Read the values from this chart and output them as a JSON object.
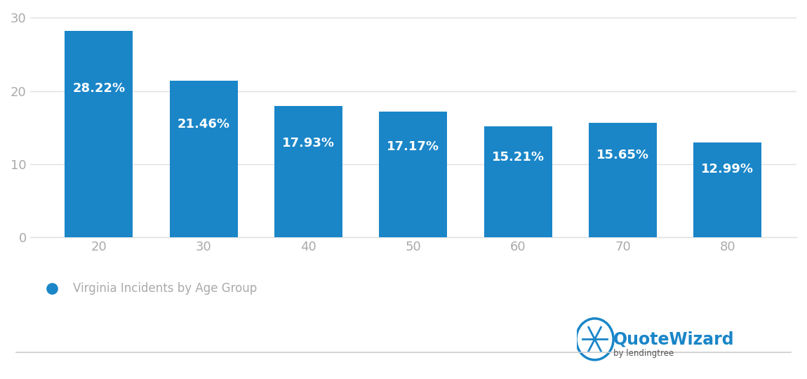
{
  "categories": [
    20,
    30,
    40,
    50,
    60,
    70,
    80
  ],
  "values": [
    28.22,
    21.46,
    17.93,
    17.17,
    15.21,
    15.65,
    12.99
  ],
  "labels": [
    "28.22%",
    "21.46%",
    "17.93%",
    "17.17%",
    "15.21%",
    "15.65%",
    "12.99%"
  ],
  "bar_color": "#1a86c8",
  "label_color": "#ffffff",
  "label_fontsize": 13,
  "label_fontweight": "bold",
  "yticks": [
    0,
    10,
    20,
    30
  ],
  "ylim": [
    0,
    31
  ],
  "tick_color": "#aaaaaa",
  "tick_fontsize": 13,
  "background_color": "#ffffff",
  "legend_label": "Virginia Incidents by Age Group",
  "legend_dot_color": "#1a86c8",
  "legend_fontsize": 12,
  "grid_color": "#e0e0e0",
  "bar_width": 0.65
}
